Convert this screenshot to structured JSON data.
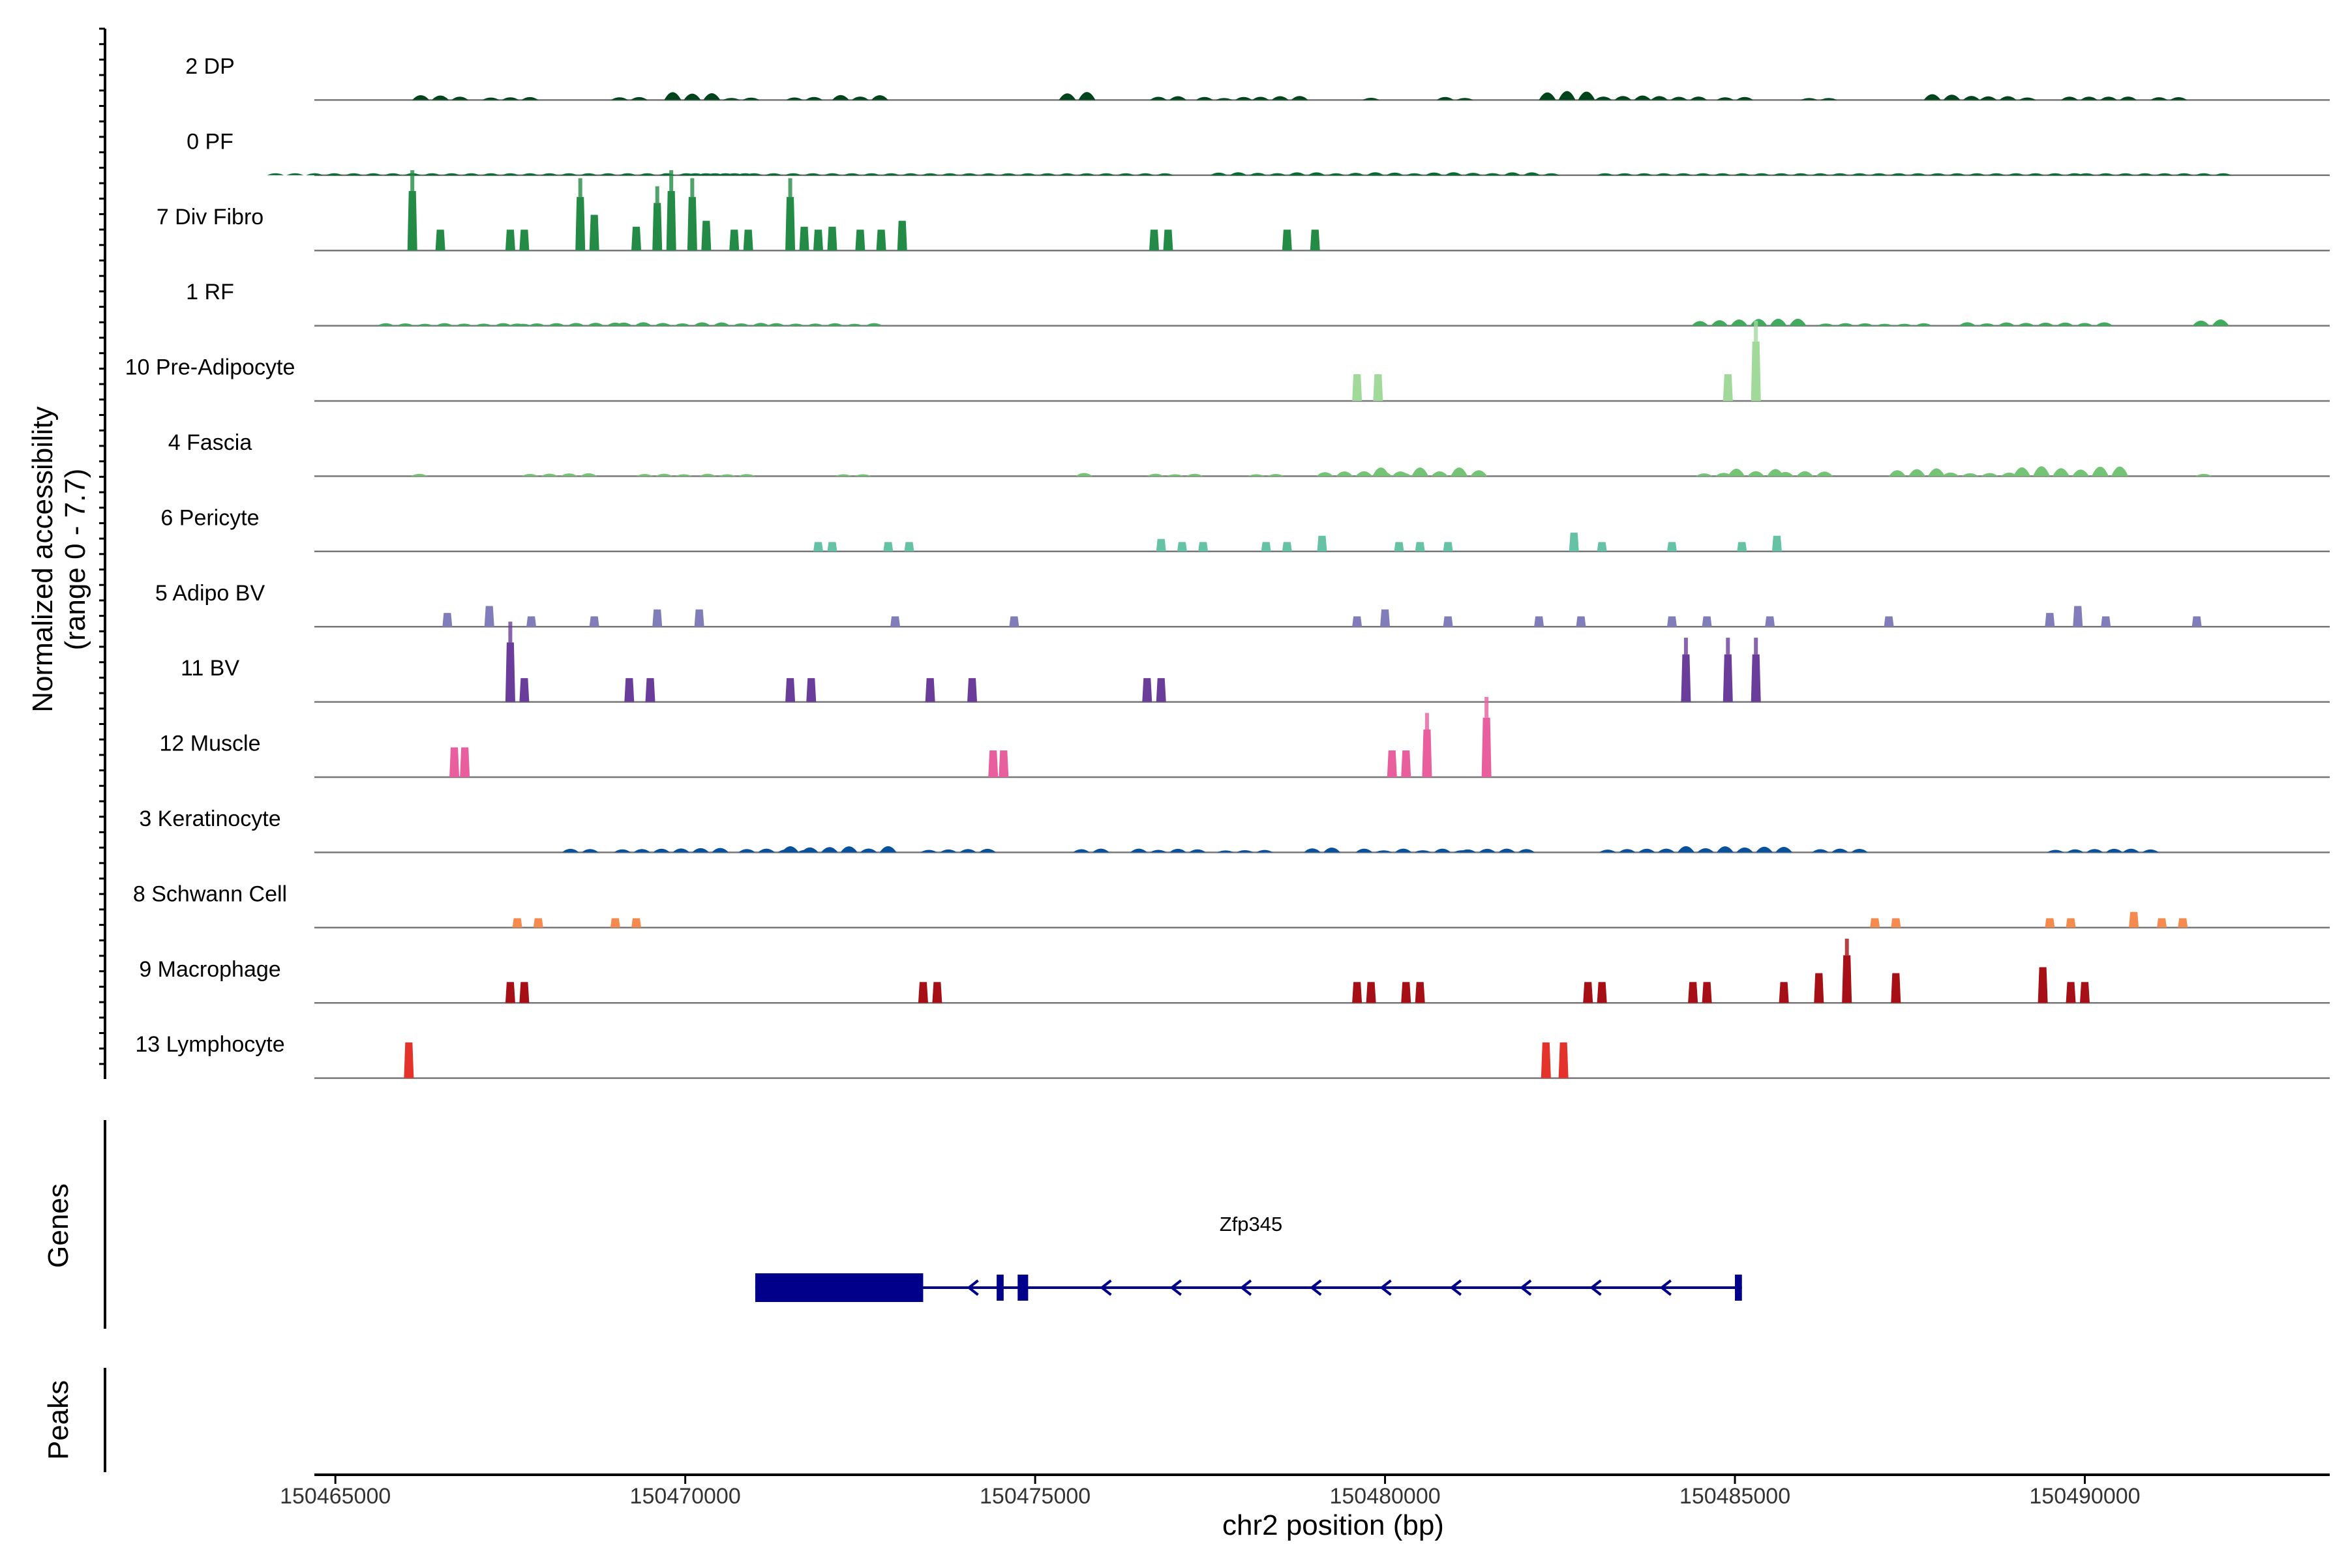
{
  "chart_data": {
    "type": "genome_track",
    "ylabel_line1": "Normalized accessibility",
    "ylabel_line2": "(range 0 - 7.7)",
    "y_range": [
      0,
      7.7
    ],
    "xlabel": "chr2 position (bp)",
    "xlim": [
      150464700,
      150493500
    ],
    "x_ticks": [
      {
        "value": 150465000,
        "label": "150465000"
      },
      {
        "value": 150470000,
        "label": "150470000"
      },
      {
        "value": 150475000,
        "label": "150475000"
      },
      {
        "value": 150480000,
        "label": "150480000"
      },
      {
        "value": 150485000,
        "label": "150485000"
      },
      {
        "value": 150490000,
        "label": "150490000"
      }
    ],
    "tracks": [
      {
        "name": "2 DP",
        "color": "#00441b",
        "mode": "low",
        "scale": 0.16,
        "peaks": [
          [
            150466500,
            0.5,
            3
          ],
          [
            150467500,
            0.4,
            3
          ],
          [
            150469200,
            0.3,
            2
          ],
          [
            150470100,
            0.8,
            3
          ],
          [
            150470800,
            0.3,
            2
          ],
          [
            150471700,
            0.3,
            2
          ],
          [
            150472500,
            0.5,
            3
          ],
          [
            150475600,
            0.9,
            2
          ],
          [
            150476900,
            0.4,
            2
          ],
          [
            150477700,
            0.3,
            3
          ],
          [
            150478500,
            0.4,
            3
          ],
          [
            150479800,
            0.3,
            1
          ],
          [
            150481000,
            0.3,
            2
          ],
          [
            150482600,
            0.9,
            3
          ],
          [
            150483400,
            0.5,
            3
          ],
          [
            150484200,
            0.4,
            3
          ],
          [
            150485000,
            0.3,
            2
          ],
          [
            150486200,
            0.2,
            2
          ],
          [
            150488100,
            0.6,
            3
          ],
          [
            150488900,
            0.4,
            3
          ],
          [
            150490200,
            0.6,
            4
          ],
          [
            150491200,
            0.3,
            2
          ]
        ]
      },
      {
        "name": "0 PF",
        "color": "#006d2c",
        "mode": "low",
        "scale": 0.08,
        "peaks": [
          [
            150467500,
            0.4,
            25
          ],
          [
            150473500,
            0.4,
            25
          ],
          [
            150480000,
            0.6,
            18
          ],
          [
            150486500,
            0.4,
            25
          ],
          [
            150491000,
            0.3,
            8
          ]
        ]
      },
      {
        "name": "7 Div Fibro",
        "color": "#238b45",
        "mode": "bars",
        "scale": 0.95,
        "peaks": [
          [
            150466100,
            1.0
          ],
          [
            150466500,
            0.35
          ],
          [
            150467500,
            0.35
          ],
          [
            150467700,
            0.35
          ],
          [
            150468500,
            0.9
          ],
          [
            150468700,
            0.6
          ],
          [
            150469300,
            0.4
          ],
          [
            150469600,
            0.8
          ],
          [
            150469800,
            1.0
          ],
          [
            150470100,
            0.9
          ],
          [
            150470300,
            0.5
          ],
          [
            150470700,
            0.35
          ],
          [
            150470900,
            0.35
          ],
          [
            150471500,
            0.9
          ],
          [
            150471700,
            0.4
          ],
          [
            150471900,
            0.35
          ],
          [
            150472100,
            0.4
          ],
          [
            150472500,
            0.35
          ],
          [
            150472800,
            0.35
          ],
          [
            150473100,
            0.5
          ],
          [
            150476700,
            0.35
          ],
          [
            150476900,
            0.35
          ],
          [
            150478600,
            0.35
          ],
          [
            150479000,
            0.35
          ]
        ]
      },
      {
        "name": "1 RF",
        "color": "#41ab5d",
        "mode": "low",
        "scale": 0.14,
        "peaks": [
          [
            150466700,
            0.3,
            8
          ],
          [
            150468300,
            0.4,
            6
          ],
          [
            150470100,
            0.4,
            8
          ],
          [
            150472000,
            0.3,
            6
          ],
          [
            150485200,
            0.8,
            6
          ],
          [
            150487000,
            0.3,
            6
          ],
          [
            150489300,
            0.4,
            8
          ],
          [
            150491800,
            0.8,
            2
          ]
        ]
      },
      {
        "name": "10 Pre-Adipocyte",
        "color": "#a1d99b",
        "mode": "bars",
        "scale": 0.95,
        "peaks": [
          [
            150479600,
            0.45
          ],
          [
            150479900,
            0.45
          ],
          [
            150484900,
            0.45
          ],
          [
            150485300,
            1.0
          ]
        ]
      },
      {
        "name": "4 Fascia",
        "color": "#74c476",
        "mode": "low",
        "scale": 0.2,
        "peaks": [
          [
            150466200,
            0.2,
            1
          ],
          [
            150468200,
            0.3,
            4
          ],
          [
            150469700,
            0.2,
            3
          ],
          [
            150470600,
            0.2,
            3
          ],
          [
            150472400,
            0.2,
            2
          ],
          [
            150475700,
            0.3,
            1
          ],
          [
            150477000,
            0.2,
            3
          ],
          [
            150478300,
            0.2,
            2
          ],
          [
            150479700,
            0.4,
            5
          ],
          [
            150480500,
            0.7,
            5
          ],
          [
            150481200,
            0.5,
            2
          ],
          [
            150484700,
            0.3,
            2
          ],
          [
            150485300,
            0.6,
            3
          ],
          [
            150486000,
            0.4,
            3
          ],
          [
            150487600,
            0.7,
            3
          ],
          [
            150488500,
            0.3,
            4
          ],
          [
            150489800,
            0.8,
            6
          ],
          [
            150491700,
            0.3,
            1
          ]
        ]
      },
      {
        "name": "6 Pericyte",
        "color": "#66c2a4",
        "mode": "bars",
        "scale": 0.5,
        "peaks": [
          [
            150471900,
            0.3
          ],
          [
            150472100,
            0.3
          ],
          [
            150472900,
            0.3
          ],
          [
            150473200,
            0.3
          ],
          [
            150476800,
            0.4
          ],
          [
            150477100,
            0.3
          ],
          [
            150477400,
            0.3
          ],
          [
            150478300,
            0.3
          ],
          [
            150478600,
            0.3
          ],
          [
            150479100,
            0.5
          ],
          [
            150480200,
            0.3
          ],
          [
            150480500,
            0.3
          ],
          [
            150480900,
            0.3
          ],
          [
            150482700,
            0.6
          ],
          [
            150483100,
            0.3
          ],
          [
            150484100,
            0.3
          ],
          [
            150485100,
            0.3
          ],
          [
            150485600,
            0.5
          ]
        ]
      },
      {
        "name": "5 Adipo BV",
        "color": "#807dba",
        "mode": "bars",
        "scale": 0.55,
        "peaks": [
          [
            150466600,
            0.4
          ],
          [
            150467200,
            0.6
          ],
          [
            150467800,
            0.3
          ],
          [
            150468700,
            0.3
          ],
          [
            150469600,
            0.5
          ],
          [
            150470200,
            0.5
          ],
          [
            150473000,
            0.3
          ],
          [
            150474700,
            0.3
          ],
          [
            150479600,
            0.3
          ],
          [
            150480000,
            0.5
          ],
          [
            150480900,
            0.3
          ],
          [
            150482200,
            0.3
          ],
          [
            150482800,
            0.3
          ],
          [
            150484100,
            0.3
          ],
          [
            150484600,
            0.3
          ],
          [
            150485500,
            0.3
          ],
          [
            150487200,
            0.3
          ],
          [
            150489500,
            0.4
          ],
          [
            150489900,
            0.6
          ],
          [
            150490300,
            0.3
          ],
          [
            150491600,
            0.3
          ]
        ]
      },
      {
        "name": "11 BV",
        "color": "#6a3d9a",
        "mode": "bars",
        "scale": 0.95,
        "peaks": [
          [
            150467500,
            1.0
          ],
          [
            150467700,
            0.4
          ],
          [
            150469200,
            0.4
          ],
          [
            150469500,
            0.4
          ],
          [
            150471500,
            0.4
          ],
          [
            150471800,
            0.4
          ],
          [
            150473500,
            0.4
          ],
          [
            150474100,
            0.4
          ],
          [
            150476600,
            0.4
          ],
          [
            150476800,
            0.4
          ],
          [
            150484300,
            0.8
          ],
          [
            150484900,
            0.8
          ],
          [
            150485300,
            0.8
          ]
        ]
      },
      {
        "name": "12 Muscle",
        "color": "#e95e9d",
        "mode": "bars",
        "scale": 0.95,
        "peaks": [
          [
            150466700,
            0.5
          ],
          [
            150466850,
            0.5
          ],
          [
            150474400,
            0.45
          ],
          [
            150474550,
            0.45
          ],
          [
            150480100,
            0.45
          ],
          [
            150480300,
            0.45
          ],
          [
            150480600,
            0.8
          ],
          [
            150481450,
            1.0
          ]
        ]
      },
      {
        "name": "3 Keratinocyte",
        "color": "#08519c",
        "mode": "low",
        "scale": 0.2,
        "peaks": [
          [
            150468500,
            0.3,
            2
          ],
          [
            150469800,
            0.4,
            6
          ],
          [
            150471300,
            0.3,
            4
          ],
          [
            150472200,
            0.5,
            6
          ],
          [
            150473900,
            0.3,
            4
          ],
          [
            150475800,
            0.3,
            2
          ],
          [
            150476900,
            0.3,
            4
          ],
          [
            150478000,
            0.2,
            3
          ],
          [
            150479100,
            0.4,
            2
          ],
          [
            150480400,
            0.3,
            6
          ],
          [
            150481600,
            0.3,
            4
          ],
          [
            150483600,
            0.3,
            4
          ],
          [
            150485000,
            0.5,
            6
          ],
          [
            150486500,
            0.3,
            3
          ],
          [
            150490000,
            0.3,
            4
          ],
          [
            150490800,
            0.3,
            2
          ]
        ]
      },
      {
        "name": "8 Schwann Cell",
        "color": "#f58a4f",
        "mode": "bars",
        "scale": 0.5,
        "peaks": [
          [
            150467600,
            0.3
          ],
          [
            150467900,
            0.3
          ],
          [
            150469000,
            0.3
          ],
          [
            150469300,
            0.3
          ],
          [
            150487000,
            0.3
          ],
          [
            150487300,
            0.3
          ],
          [
            150489500,
            0.3
          ],
          [
            150489800,
            0.3
          ],
          [
            150490700,
            0.5
          ],
          [
            150491100,
            0.3
          ],
          [
            150491400,
            0.3
          ]
        ]
      },
      {
        "name": "9 Macrophage",
        "color": "#a50f15",
        "mode": "bars",
        "scale": 0.95,
        "peaks": [
          [
            150467500,
            0.35
          ],
          [
            150467700,
            0.35
          ],
          [
            150473400,
            0.35
          ],
          [
            150473600,
            0.35
          ],
          [
            150479600,
            0.35
          ],
          [
            150479800,
            0.35
          ],
          [
            150480300,
            0.35
          ],
          [
            150480500,
            0.35
          ],
          [
            150482900,
            0.35
          ],
          [
            150483100,
            0.35
          ],
          [
            150484400,
            0.35
          ],
          [
            150484600,
            0.35
          ],
          [
            150485700,
            0.35
          ],
          [
            150486200,
            0.5
          ],
          [
            150486600,
            0.8
          ],
          [
            150487300,
            0.5
          ],
          [
            150489400,
            0.6
          ],
          [
            150489800,
            0.35
          ],
          [
            150490000,
            0.35
          ]
        ]
      },
      {
        "name": "13 Lymphocyte",
        "color": "#e3332b",
        "mode": "bars",
        "scale": 0.95,
        "peaks": [
          [
            150466050,
            0.6
          ],
          [
            150482300,
            0.6
          ],
          [
            150482550,
            0.6
          ]
        ]
      }
    ],
    "panels": {
      "genes_label": "Genes",
      "peaks_label": "Peaks"
    },
    "gene": {
      "name": "Zfp345",
      "color": "#00008b",
      "start": 150471000,
      "end": 150485100,
      "exons": [
        [
          150471000,
          150473400
        ],
        [
          150474450,
          150474550
        ],
        [
          150474750,
          150474900
        ],
        [
          150485000,
          150485100
        ]
      ],
      "arrows": [
        150474100,
        150476000,
        150477000,
        150478000,
        150479000,
        150480000,
        150481000,
        150482000,
        150483000,
        150484000
      ]
    }
  }
}
